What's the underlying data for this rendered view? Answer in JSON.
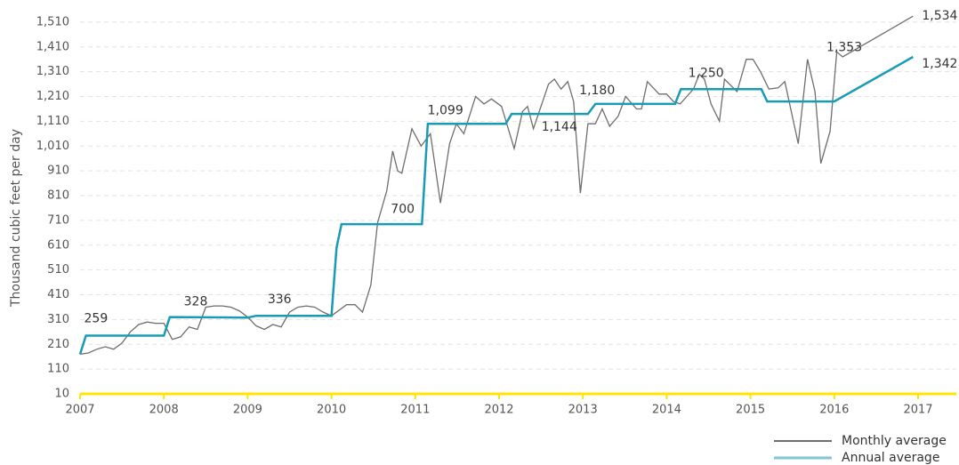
{
  "chart_data": {
    "type": "line",
    "y_label": "Thousand cubic feet per day",
    "xlim": [
      2007,
      2017
    ],
    "xticks": [
      2007,
      2008,
      2009,
      2010,
      2011,
      2012,
      2013,
      2014,
      2015,
      2016,
      2017
    ],
    "ylim": [
      10,
      1560
    ],
    "yticks": [
      10,
      110,
      210,
      310,
      410,
      510,
      610,
      710,
      810,
      910,
      {
        "value": 1010,
        "label": "1,010"
      },
      {
        "value": 1110,
        "label": "1,110"
      },
      {
        "value": 1210,
        "label": "1,210"
      },
      {
        "value": 1310,
        "label": "1,310"
      },
      {
        "value": 1410,
        "label": "1,410"
      },
      {
        "value": 1510,
        "label": "1,510"
      }
    ],
    "grid": true,
    "axis_color": "#ffe600",
    "legend": "bottom-right",
    "series": [
      {
        "name": "Monthly average",
        "color": "#6e6e6e",
        "x": [
          2007,
          2007.1,
          2007.2,
          2007.3,
          2007.4,
          2007.5,
          2007.6,
          2007.7,
          2007.8,
          2007.9,
          2008,
          2008.1,
          2008.2,
          2008.3,
          2008.4,
          2008.5,
          2008.6,
          2008.7,
          2008.8,
          2008.9,
          2009,
          2009.1,
          2009.2,
          2009.3,
          2009.4,
          2009.5,
          2009.6,
          2009.7,
          2009.8,
          2009.9,
          2010,
          2010.18,
          2010.28,
          2010.37,
          2010.47,
          2010.55,
          2010.66,
          2010.7,
          2010.73,
          2010.79,
          2010.84,
          2010.96,
          2011.07,
          2011.18,
          2011.3,
          2011.41,
          2011.49,
          2011.58,
          2011.72,
          2011.82,
          2011.91,
          2012.03,
          2012.18,
          2012.28,
          2012.34,
          2012.41,
          2012.59,
          2012.66,
          2012.74,
          2012.82,
          2012.89,
          2012.97,
          2013.06,
          2013.15,
          2013.23,
          2013.32,
          2013.42,
          2013.51,
          2013.64,
          2013.7,
          2013.77,
          2013.91,
          2014,
          2014.08,
          2014.16,
          2014.32,
          2014.39,
          2014.45,
          2014.53,
          2014.63,
          2014.69,
          2014.84,
          2014.95,
          2015.03,
          2015.12,
          2015.22,
          2015.33,
          2015.41,
          2015.57,
          2015.68,
          2015.77,
          2015.84,
          2015.95,
          2016.03,
          2016.1,
          2016.94
        ],
        "values": [
          170,
          175,
          190,
          200,
          190,
          215,
          260,
          290,
          300,
          295,
          295,
          230,
          240,
          280,
          270,
          360,
          365,
          365,
          360,
          345,
          320,
          285,
          270,
          290,
          280,
          340,
          360,
          365,
          360,
          340,
          325,
          370,
          370,
          340,
          450,
          700,
          830,
          920,
          990,
          910,
          900,
          1080,
          1010,
          1060,
          780,
          1020,
          1100,
          1060,
          1210,
          1180,
          1200,
          1170,
          1000,
          1150,
          1170,
          1080,
          1260,
          1280,
          1240,
          1270,
          1190,
          820,
          1100,
          1100,
          1160,
          1090,
          1130,
          1210,
          1160,
          1160,
          1270,
          1220,
          1220,
          1190,
          1180,
          1240,
          1300,
          1280,
          1180,
          1110,
          1280,
          1230,
          1360,
          1360,
          1310,
          1240,
          1245,
          1270,
          1020,
          1360,
          1230,
          940,
          1070,
          1390,
          1370,
          1534
        ]
      },
      {
        "name": "Annual average",
        "color": "#1a9bb5",
        "x": [
          2007,
          2007.07,
          2008,
          2008.07,
          2009,
          2009.1,
          2010,
          2010.06,
          2010.12,
          2011.08,
          2011.15,
          2012.08,
          2012.15,
          2013.06,
          2013.15,
          2014.1,
          2014.17,
          2015.13,
          2015.2,
          2016,
          2016.94
        ],
        "values": [
          170,
          245,
          245,
          320,
          318,
          325,
          325,
          600,
          695,
          695,
          1100,
          1100,
          1140,
          1140,
          1180,
          1180,
          1240,
          1240,
          1190,
          1190,
          1370
        ]
      }
    ],
    "data_labels": [
      {
        "x": 2007.19,
        "value": 259,
        "label": "259",
        "position": "above"
      },
      {
        "x": 2008.38,
        "value": 328,
        "label": "328",
        "position": "above"
      },
      {
        "x": 2009.38,
        "value": 336,
        "label": "336",
        "position": "above"
      },
      {
        "x": 2010.85,
        "value": 700,
        "label": "700",
        "position": "above"
      },
      {
        "x": 2011.36,
        "value": 1099,
        "label": "1,099",
        "position": "above"
      },
      {
        "x": 2012.72,
        "value": 1144,
        "label": "1,144",
        "position": "below"
      },
      {
        "x": 2013.17,
        "value": 1180,
        "label": "1,180",
        "position": "above"
      },
      {
        "x": 2014.47,
        "value": 1250,
        "label": "1,250",
        "position": "above"
      },
      {
        "x": 2016.12,
        "value": 1353,
        "label": "1,353",
        "position": "above"
      },
      {
        "x": 2016.94,
        "value": 1534,
        "label": "1,534",
        "position": "right"
      },
      {
        "x": 2016.94,
        "value": 1342,
        "label": "1,342",
        "position": "right"
      }
    ]
  }
}
